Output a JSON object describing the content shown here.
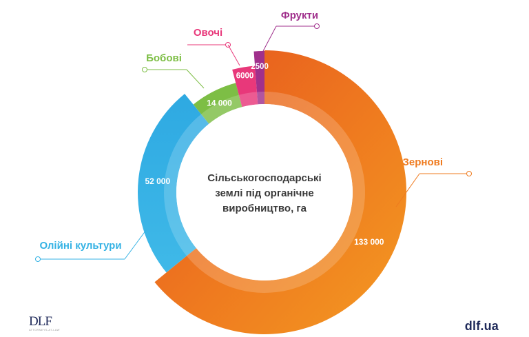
{
  "chart_data": {
    "type": "pie",
    "center_label": [
      "Сільськогосподарські",
      "землі під органічне",
      "виробництво, га"
    ],
    "slices": [
      {
        "name": "Зернові",
        "value": 133000,
        "value_label": "133 000",
        "color": "#ee7b1f",
        "color_dark": "#e4561e"
      },
      {
        "name": "Олійні культури",
        "value": 52000,
        "value_label": "52 000",
        "color": "#36b5e6",
        "color_dark": "#2aa0d9"
      },
      {
        "name": "Бобові",
        "value": 14000,
        "value_label": "14 000",
        "color": "#7dbe45",
        "color_dark": "#6bad37"
      },
      {
        "name": "Овочі",
        "value": 6000,
        "value_label": "6000",
        "color": "#e8387a",
        "color_dark": "#d9226a"
      },
      {
        "name": "Фрукти",
        "value": 2500,
        "value_label": "2500",
        "color": "#a0308c",
        "color_dark": "#8a2a7c"
      }
    ]
  },
  "branding": {
    "left_logo": "DLF",
    "left_logo_sub": "ATTORNEYS-AT-LAW",
    "right_logo": "dlf.ua"
  }
}
